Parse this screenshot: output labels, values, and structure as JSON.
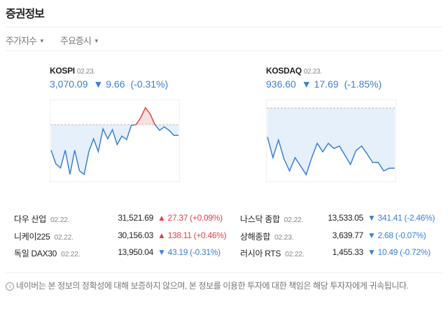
{
  "header": {
    "title": "증권정보"
  },
  "tabs": [
    {
      "label": "주가지수"
    },
    {
      "label": "주요증시"
    }
  ],
  "indices": [
    {
      "name": "KOSPI",
      "date": "02.23.",
      "value": "3,070.09",
      "change": "▼ 9.66",
      "pct": "(-0.31%)"
    },
    {
      "name": "KOSDAQ",
      "date": "02.23.",
      "value": "936.60",
      "change": "▼ 17.69",
      "pct": "(-1.85%)"
    }
  ],
  "chart_data": [
    {
      "type": "area",
      "name": "KOSPI",
      "baseline": 3079.75,
      "ylim": [
        3027,
        3102
      ],
      "values": [
        3056.6,
        3044.3,
        3040.5,
        3056.6,
        3034.7,
        3056.6,
        3037.9,
        3034.7,
        3055.3,
        3066.9,
        3055.3,
        3075.9,
        3066.9,
        3075.2,
        3061.7,
        3069.4,
        3066.2,
        3079.1,
        3079.75,
        3086.2,
        3095.2,
        3089.4,
        3079.75,
        3074.6,
        3077.8,
        3074.6,
        3070.1,
        3070.09
      ]
    },
    {
      "type": "area",
      "name": "KOSDAQ",
      "baseline": 954.29,
      "ylim": [
        932.3,
        956.6
      ],
      "values": [
        945.8,
        939.7,
        944.9,
        939.3,
        935.8,
        939.7,
        937.2,
        934.7,
        939.7,
        943.9,
        941.4,
        943.9,
        942.4,
        943.1,
        940.4,
        937.7,
        941.8,
        943.1,
        940.8,
        938.3,
        938.3,
        935.8,
        936.6,
        936.6
      ]
    }
  ],
  "markets": [
    {
      "name": "다우 산업",
      "date": "02.22.",
      "value": "31,521.69",
      "change": "▲ 27.37 (+0.09%)",
      "dir": "up"
    },
    {
      "name": "나스닥 종합",
      "date": "02.22.",
      "value": "13,533.05",
      "change": "▼ 341.41 (-2.46%)",
      "dir": "dn"
    },
    {
      "name": "니케이225",
      "date": "02.22.",
      "value": "30,156.03",
      "change": "▲ 138.11 (+0.46%)",
      "dir": "up"
    },
    {
      "name": "상해종합",
      "date": "02.23.",
      "value": "3,639.77",
      "change": "▼ 2.68 (-0.07%)",
      "dir": "dn"
    },
    {
      "name": "독일 DAX30",
      "date": "02.22.",
      "value": "13,950.04",
      "change": "▼ 43.19 (-0.31%)",
      "dir": "dn"
    },
    {
      "name": "러시아 RTS",
      "date": "02.22.",
      "value": "1,455.33",
      "change": "▼ 10.49 (-0.72%)",
      "dir": "dn"
    }
  ],
  "colors": {
    "up": "#e0414b",
    "down": "#3b7fd4"
  },
  "footer": {
    "icon": "info-icon",
    "text": "네이버는 본 정보의 정확성에 대해 보증하지 않으며, 본 정보를 이용한 투자에 대한 책임은 해당 투자자에게 귀속됩니다."
  }
}
